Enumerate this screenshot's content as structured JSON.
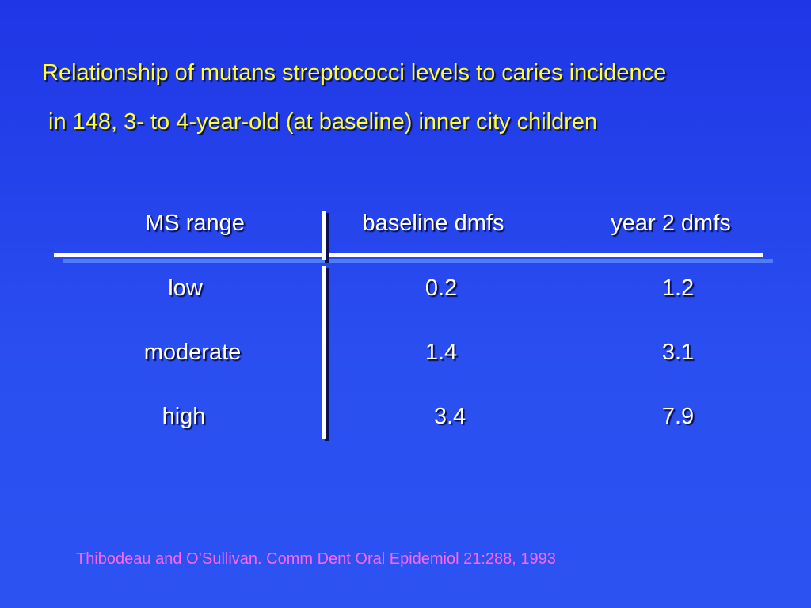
{
  "title": {
    "line1": "Relationship of mutans streptococci levels to caries incidence",
    "line2": "in 148, 3- to 4-year-old (at baseline) inner city children"
  },
  "table": {
    "headers": [
      "MS range",
      "baseline dmfs",
      "year 2 dmfs"
    ],
    "rows": [
      [
        "low",
        "0.2",
        "1.2"
      ],
      [
        "moderate",
        "1.4",
        "3.1"
      ],
      [
        "high",
        "3.4",
        "7.9"
      ]
    ]
  },
  "citation": "Thibodeau and O’Sullivan. Comm Dent Oral Epidemiol 21:288, 1993",
  "colors": {
    "background": "#2a4ff0",
    "title_text": "#ffff33",
    "table_text": "#ffffff",
    "citation_text": "#ff66ff"
  }
}
